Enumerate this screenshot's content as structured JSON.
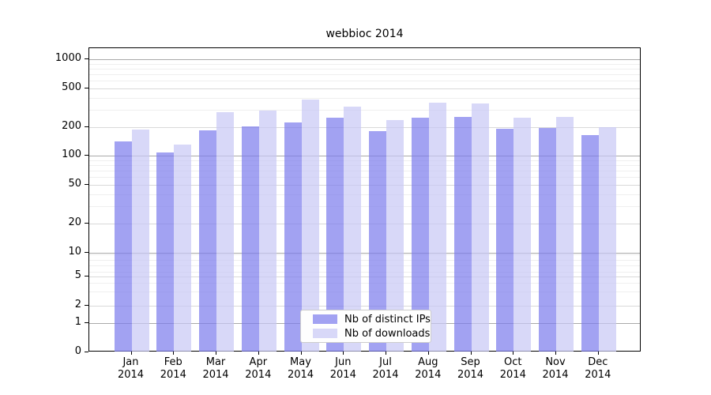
{
  "chart_data": {
    "type": "bar",
    "title": "webbioc 2014",
    "categories": [
      "Jan",
      "Feb",
      "Mar",
      "Apr",
      "May",
      "Jun",
      "Jul",
      "Aug",
      "Sep",
      "Oct",
      "Nov",
      "Dec"
    ],
    "year_label": "2014",
    "series": [
      {
        "name": "Nb of distinct IPs",
        "fill": "rgba(122,122,236,0.7)",
        "swatch_color": "#a2a2f2",
        "values": [
          142,
          109,
          184,
          202,
          223,
          250,
          179,
          247,
          255,
          190,
          195,
          165
        ]
      },
      {
        "name": "Nb of downloads",
        "fill": "rgba(199,199,245,0.7)",
        "swatch_color": "#d8d8f8",
        "values": [
          188,
          131,
          283,
          294,
          383,
          323,
          235,
          357,
          350,
          248,
          255,
          200
        ]
      }
    ],
    "xlabel": "",
    "ylabel": "",
    "y_axis": {
      "scale": "log-like",
      "tick_labels": [
        "1000",
        "500",
        "200",
        "100",
        "50",
        "20",
        "10",
        "5",
        "2",
        "1",
        "0"
      ],
      "tick_values": [
        1000,
        500,
        200,
        100,
        50,
        20,
        10,
        5,
        2,
        1,
        0
      ]
    },
    "ylim": [
      0,
      1300
    ],
    "grid": true,
    "legend_position": "lower-center-inside",
    "colors": {
      "grid_decade": "#a9a9a9",
      "grid_labeled": "#d9d9d9",
      "grid_minor": "#efefef",
      "spine": "#000000",
      "background": "#ffffff"
    }
  }
}
